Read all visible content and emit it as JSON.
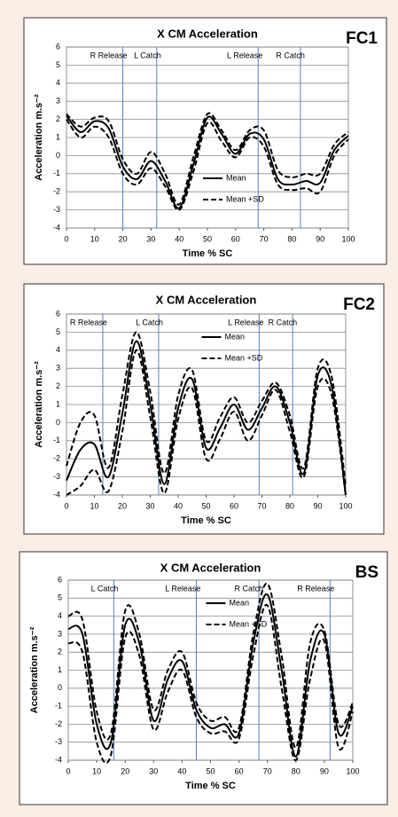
{
  "chart_data": [
    {
      "type": "line",
      "title": "X CM Acceleration",
      "label": "FC1",
      "x_label": "Time % SC",
      "y_label": "Acceleration m.s⁻²",
      "x": [
        0,
        5,
        10,
        15,
        20,
        25,
        30,
        35,
        40,
        45,
        50,
        55,
        60,
        65,
        70,
        75,
        80,
        85,
        90,
        95,
        100
      ],
      "series": [
        {
          "name": "Mean",
          "color": "#000000",
          "dash": false,
          "values": [
            2.2,
            1.3,
            1.9,
            1.5,
            -0.6,
            -1.3,
            -0.3,
            -1.4,
            -2.9,
            -0.5,
            2.1,
            1.2,
            0.1,
            1.2,
            0.9,
            -1.3,
            -1.6,
            -1.4,
            -1.5,
            0.3,
            1.1
          ]
        },
        {
          "name": "Mean +SD",
          "color": "#000000",
          "dash": true,
          "values": [
            2.3,
            1.6,
            2.1,
            1.9,
            -0.2,
            -1.0,
            0.2,
            -1.0,
            -2.7,
            -0.1,
            2.3,
            1.4,
            0.3,
            1.4,
            1.4,
            -0.8,
            -1.2,
            -1.0,
            -1.0,
            0.6,
            1.3
          ]
        },
        {
          "color": "#000000",
          "dash": true,
          "values": [
            2.0,
            1.0,
            1.6,
            1.0,
            -1.0,
            -1.6,
            -0.7,
            -1.7,
            -3.0,
            -0.9,
            1.8,
            0.8,
            -0.1,
            1.0,
            0.5,
            -1.6,
            -1.9,
            -1.8,
            -2.0,
            0.0,
            0.9
          ]
        }
      ],
      "phases": [
        {
          "label": "R Release",
          "x": 20
        },
        {
          "label": "L Catch",
          "x": 32
        },
        {
          "label": "L Release",
          "x": 68
        },
        {
          "label": "R Catch",
          "x": 83
        }
      ],
      "xlim": [
        0,
        100
      ],
      "xticks": [
        0,
        10,
        20,
        30,
        40,
        50,
        60,
        70,
        80,
        90,
        100
      ],
      "ylim": [
        -4,
        6
      ],
      "yticks": [
        -4,
        -3,
        -2,
        -1,
        0,
        1,
        2,
        3,
        4,
        5,
        6
      ],
      "grid": true,
      "legend": "lower center"
    },
    {
      "type": "line",
      "title": "X CM Acceleration",
      "label": "FC2",
      "x_label": "Time % SC",
      "y_label": "Acceleration m.s⁻²",
      "x": [
        0,
        5,
        10,
        15,
        20,
        25,
        30,
        35,
        40,
        45,
        50,
        55,
        60,
        65,
        70,
        75,
        80,
        85,
        90,
        95,
        100
      ],
      "series": [
        {
          "name": "Mean",
          "color": "#000000",
          "dash": false,
          "values": [
            -3.2,
            -1.5,
            -1.2,
            -3.0,
            0.5,
            4.5,
            1.0,
            -3.4,
            0.8,
            2.4,
            -1.4,
            -0.3,
            1.0,
            -0.4,
            0.8,
            2.0,
            0.0,
            -2.8,
            2.6,
            2.0,
            -4.0
          ]
        },
        {
          "name": "Mean +SD",
          "color": "#000000",
          "dash": true,
          "values": [
            -2.4,
            0.0,
            0.4,
            -2.5,
            1.5,
            5.0,
            1.7,
            -2.8,
            1.5,
            2.9,
            -1.0,
            0.3,
            1.4,
            0.0,
            1.2,
            2.2,
            0.4,
            -2.5,
            3.0,
            2.5,
            -3.5
          ]
        },
        {
          "color": "#000000",
          "dash": true,
          "values": [
            -4.0,
            -3.5,
            -2.6,
            -3.8,
            -0.5,
            4.0,
            0.3,
            -3.9,
            0.2,
            1.9,
            -2.0,
            -0.9,
            0.6,
            -1.0,
            0.4,
            1.8,
            -0.5,
            -3.0,
            2.0,
            1.5,
            -4.0
          ]
        }
      ],
      "phases": [
        {
          "label": "R Release",
          "x": 13
        },
        {
          "label": "L Catch",
          "x": 33
        },
        {
          "label": "L Release",
          "x": 69
        },
        {
          "label": "R Catch",
          "x": 81
        }
      ],
      "xlim": [
        0,
        100
      ],
      "xticks": [
        0,
        10,
        20,
        30,
        40,
        50,
        60,
        70,
        80,
        90,
        100
      ],
      "ylim": [
        -4,
        6
      ],
      "yticks": [
        -4,
        -3,
        -2,
        -1,
        0,
        1,
        2,
        3,
        4,
        5,
        6
      ],
      "grid": true,
      "legend": "upper center"
    },
    {
      "type": "line",
      "title": "X CM Acceleration",
      "label": "BS",
      "x_label": "Time % SC",
      "y_label": "Acceleration m.s⁻²",
      "x": [
        0,
        5,
        10,
        15,
        20,
        25,
        30,
        35,
        40,
        45,
        50,
        55,
        60,
        65,
        70,
        75,
        80,
        85,
        90,
        95,
        100
      ],
      "series": [
        {
          "name": "Mean",
          "color": "#000000",
          "dash": false,
          "values": [
            3.3,
            3.0,
            -2.0,
            -3.0,
            3.5,
            2.5,
            -1.8,
            0.5,
            1.5,
            -1.2,
            -2.2,
            -2.0,
            -2.5,
            2.5,
            5.2,
            1.0,
            -3.8,
            1.5,
            3.0,
            -2.5,
            -1.0
          ]
        },
        {
          "name": "Mean +SD",
          "color": "#000000",
          "dash": true,
          "values": [
            4.0,
            3.8,
            -1.3,
            -2.5,
            4.3,
            3.0,
            -1.2,
            1.0,
            2.0,
            -0.8,
            -1.8,
            -1.6,
            -2.2,
            3.0,
            5.8,
            1.8,
            -3.3,
            2.5,
            3.2,
            -2.0,
            -0.8
          ]
        },
        {
          "color": "#000000",
          "dash": true,
          "values": [
            2.5,
            2.0,
            -3.0,
            -3.7,
            2.8,
            1.8,
            -2.3,
            -0.2,
            1.0,
            -1.6,
            -2.5,
            -2.4,
            -2.8,
            1.8,
            4.6,
            0.0,
            -4.0,
            0.5,
            2.6,
            -3.3,
            -1.3
          ]
        }
      ],
      "phases": [
        {
          "label": "L Catch",
          "x": 16
        },
        {
          "label": "L Release",
          "x": 45
        },
        {
          "label": "R Catch",
          "x": 67
        },
        {
          "label": "R Release",
          "x": 92
        }
      ],
      "xlim": [
        0,
        100
      ],
      "xticks": [
        0,
        10,
        20,
        30,
        40,
        50,
        60,
        70,
        80,
        90,
        100
      ],
      "ylim": [
        -4,
        6
      ],
      "yticks": [
        -4,
        -3,
        -2,
        -1,
        0,
        1,
        2,
        3,
        4,
        5,
        6
      ],
      "grid": true,
      "legend": "upper center"
    }
  ]
}
